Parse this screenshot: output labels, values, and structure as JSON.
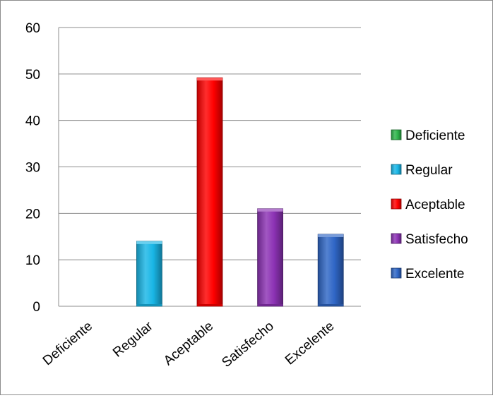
{
  "chart_data": {
    "type": "bar",
    "title": "",
    "xlabel": "",
    "ylabel": "",
    "categories": [
      "Deficiente",
      "Regular",
      "Aceptable",
      "Satisfecho",
      "Excelente"
    ],
    "values": [
      0,
      14,
      49.2,
      21,
      15.5
    ],
    "colors": [
      "#2db34a",
      "#19b6e6",
      "#ff0000",
      "#8c32b4",
      "#2f66c6"
    ],
    "ylim": [
      0,
      60
    ],
    "yticks": [
      0,
      10,
      20,
      30,
      40,
      50,
      60
    ],
    "grid": true,
    "legend": {
      "position": "right",
      "entries": [
        "Deficiente",
        "Regular",
        "Aceptable",
        "Satisfecho",
        "Excelente"
      ]
    },
    "style": "3d-cylinder-bars"
  }
}
